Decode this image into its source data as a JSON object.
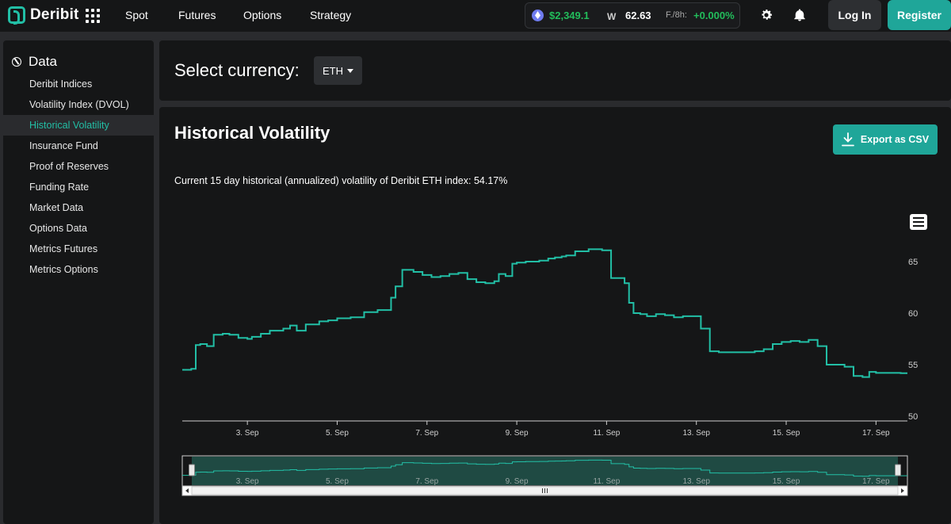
{
  "header": {
    "logo_text": "Deribit",
    "nav": [
      "Spot",
      "Futures",
      "Options",
      "Strategy"
    ],
    "ticker": {
      "eth_price": "$2,349.1",
      "dvol_value": "62.63",
      "funding_label": "F./8h:",
      "funding_value": "+0.000%"
    },
    "login_label": "Log In",
    "register_label": "Register",
    "accent_color": "#1fa699",
    "positive_color": "#22bd5b"
  },
  "sidebar": {
    "title": "Data",
    "items": [
      {
        "label": "Deribit Indices"
      },
      {
        "label": "Volatility Index (DVOL)"
      },
      {
        "label": "Historical Volatility",
        "active": true
      },
      {
        "label": "Insurance Fund"
      },
      {
        "label": "Proof of Reserves"
      },
      {
        "label": "Funding Rate"
      },
      {
        "label": "Market Data"
      },
      {
        "label": "Options Data"
      },
      {
        "label": "Metrics Futures"
      },
      {
        "label": "Metrics Options"
      }
    ]
  },
  "currency": {
    "label": "Select currency:",
    "selected": "ETH"
  },
  "main": {
    "title": "Historical Volatility",
    "export_label": "Export as CSV",
    "description": "Current 15 day historical (annualized) volatility of Deribit ETH index: 54.17%"
  },
  "chart_data": {
    "type": "line",
    "x_unit": "days (September)",
    "x_ticks": [
      "3. Sep",
      "5. Sep",
      "7. Sep",
      "9. Sep",
      "11. Sep",
      "13. Sep",
      "15. Sep",
      "17. Sep"
    ],
    "y_ticks": [
      50,
      55,
      60,
      65
    ],
    "xlim": [
      1.55,
      17.7
    ],
    "ylim": [
      49,
      67
    ],
    "grid": false,
    "line_color": "#22bfa6",
    "series": [
      {
        "x": [
          1.55,
          1.75,
          1.85,
          1.95,
          2.1,
          2.25,
          2.45,
          2.6,
          2.8,
          3.0,
          3.1,
          3.3,
          3.5,
          3.8,
          3.95,
          4.1,
          4.3,
          4.6,
          4.8,
          5.0,
          5.3,
          5.6,
          5.9,
          6.2,
          6.3,
          6.45,
          6.6,
          6.7,
          6.9,
          7.1,
          7.3,
          7.5,
          7.7,
          7.9,
          8.1,
          8.3,
          8.5,
          8.6,
          8.75,
          8.9,
          9.0,
          9.2,
          9.5,
          9.7,
          9.85,
          10.0,
          10.1,
          10.3,
          10.6,
          10.9,
          11.1,
          11.4,
          11.5,
          11.6,
          11.75,
          11.9,
          12.1,
          12.3,
          12.5,
          12.7,
          12.9,
          13.1,
          13.3,
          13.5,
          13.7,
          13.9,
          14.1,
          14.3,
          14.5,
          14.7,
          14.9,
          15.1,
          15.3,
          15.5,
          15.7,
          15.9,
          16.1,
          16.3,
          16.5,
          16.7,
          16.85,
          17.0,
          17.2,
          17.35,
          17.55,
          17.7
        ],
        "y": [
          54.5,
          54.6,
          56.9,
          57.0,
          56.8,
          57.9,
          58.0,
          57.9,
          57.6,
          57.5,
          57.7,
          58.0,
          58.3,
          58.5,
          58.8,
          58.3,
          58.9,
          59.2,
          59.3,
          59.5,
          59.6,
          60.1,
          60.3,
          61.5,
          62.6,
          64.2,
          64.2,
          64.0,
          63.7,
          63.5,
          63.6,
          63.8,
          63.9,
          63.3,
          63.0,
          62.9,
          63.1,
          63.8,
          63.6,
          64.8,
          64.9,
          65.0,
          65.1,
          65.3,
          65.4,
          65.5,
          65.6,
          66.0,
          66.2,
          66.1,
          63.4,
          62.9,
          61.0,
          60.0,
          59.9,
          59.7,
          59.9,
          59.8,
          59.6,
          59.7,
          59.7,
          58.5,
          56.3,
          56.2,
          56.2,
          56.2,
          56.2,
          56.3,
          56.5,
          57.0,
          57.2,
          57.3,
          57.2,
          57.4,
          56.8,
          55.0,
          55.0,
          54.8,
          53.9,
          53.8,
          54.3,
          54.2,
          54.2,
          54.2,
          54.17,
          54.17
        ]
      }
    ],
    "navigator": {
      "x_ticks": [
        "3. Sep",
        "5. Sep",
        "7. Sep",
        "9. Sep",
        "11. Sep",
        "13. Sep",
        "15. Sep",
        "17. Sep"
      ]
    }
  }
}
